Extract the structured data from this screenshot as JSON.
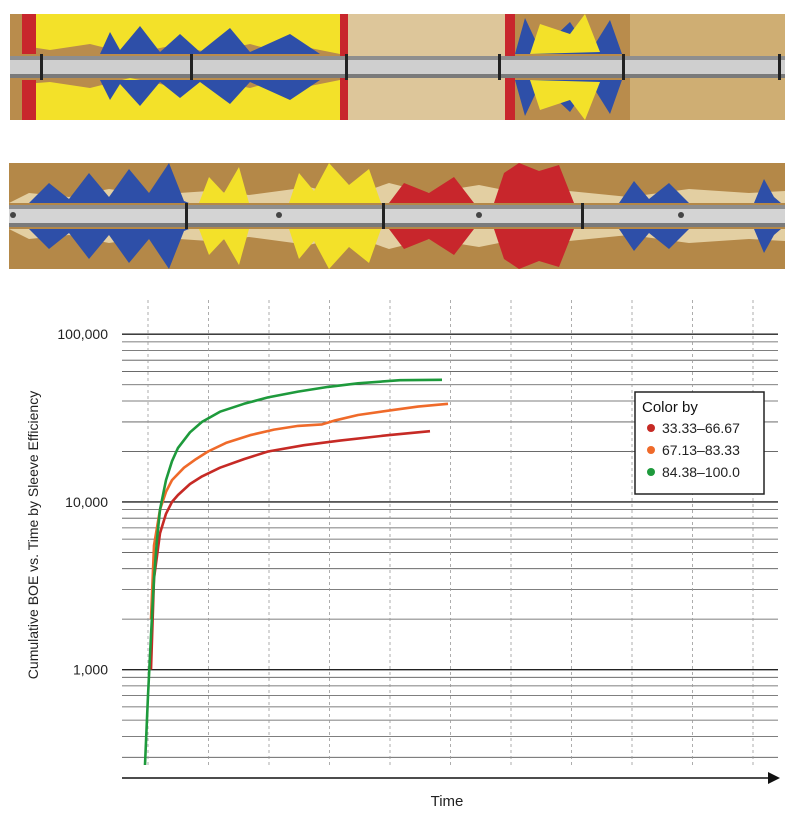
{
  "chart_data": {
    "type": "line",
    "xlabel": "Time",
    "ylabel": "Cumulative BOE vs. Time by Sleeve Efficiency",
    "yscale": "log",
    "ylim": [
      270,
      160000
    ],
    "y_ticks": [
      {
        "value": 1000,
        "label": "1,000"
      },
      {
        "value": 10000,
        "label": "10,000"
      },
      {
        "value": 100000,
        "label": "100,000"
      }
    ],
    "xlim": [
      0,
      10.5
    ],
    "grid": true,
    "legend": {
      "title": "Color by",
      "position": "right",
      "entries": [
        "33.33–66.67",
        "67.13–83.33",
        "84.38–100.0"
      ]
    },
    "series": [
      {
        "name": "33.33–66.67",
        "color": "#c62a25",
        "x": [
          0.05,
          0.1,
          0.2,
          0.3,
          0.4,
          0.5,
          0.7,
          0.9,
          1.2,
          1.6,
          2.0,
          2.6,
          3.2,
          4.0,
          4.7
        ],
        "y": [
          1000,
          3500,
          6500,
          8500,
          10000,
          11000,
          12800,
          14200,
          16000,
          18000,
          20000,
          21800,
          23200,
          25000,
          26400
        ]
      },
      {
        "name": "67.13–83.33",
        "color": "#ef6a2a",
        "x": [
          0.05,
          0.1,
          0.2,
          0.3,
          0.4,
          0.6,
          0.8,
          1.0,
          1.3,
          1.7,
          2.1,
          2.5,
          2.9,
          3.1,
          3.5,
          4.0,
          4.5,
          5.0
        ],
        "y": [
          2000,
          5500,
          9000,
          11500,
          13500,
          16000,
          18000,
          20000,
          22500,
          25000,
          27000,
          28400,
          29000,
          30500,
          33000,
          35000,
          37000,
          38500
        ]
      },
      {
        "name": "84.38–100.0",
        "color": "#1e9a3c",
        "x": [
          -0.05,
          0.0,
          0.05,
          0.1,
          0.15,
          0.2,
          0.3,
          0.4,
          0.5,
          0.7,
          0.9,
          1.2,
          1.6,
          2.0,
          2.5,
          3.0,
          3.5,
          4.2,
          4.9
        ],
        "y": [
          270,
          700,
          1600,
          3500,
          6000,
          9000,
          13500,
          17500,
          21000,
          26000,
          30000,
          34500,
          38500,
          42000,
          45500,
          48500,
          51000,
          53200,
          53500
        ]
      }
    ]
  },
  "images": {
    "top_strip": "wellbore-sleeve-image-log-1",
    "bottom_strip": "wellbore-sleeve-image-log-2",
    "strip_colors": {
      "red": "#c8262c",
      "yellow": "#f5e62b",
      "blue": "#2b4ea6",
      "tan": "#b88f4d",
      "sand": "#e6d3a6",
      "pipe": "#cfcfcf"
    }
  }
}
